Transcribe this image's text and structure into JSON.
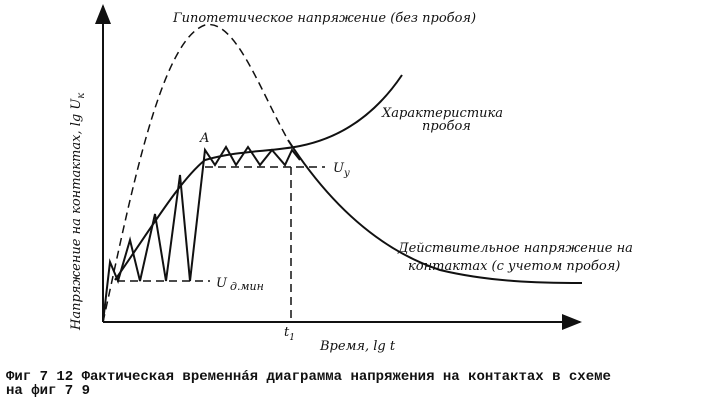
{
  "y_axis": {
    "label": "Напряжение на контактах, lg U",
    "subscript": "к"
  },
  "x_axis": {
    "label": "Время, lg t"
  },
  "curves": {
    "hypothetical": "Гипотетическое напряжение (без пробоя)",
    "breakdown": [
      "Характеристика",
      "пробоя"
    ],
    "actual": [
      "Действительное напряжение на",
      "контактах (с учетом пробоя)"
    ]
  },
  "points": {
    "a": "A",
    "u_y": {
      "symbol": "U",
      "subscript": "у"
    },
    "u_min": {
      "symbol": "U",
      "subscript": "д.мин"
    },
    "t1": {
      "symbol": "t",
      "subscript": "1"
    }
  },
  "caption": [
    "Фиг 7 12 Фактическая временнáя диаграмма напряжения на контактах в схеме",
    "на фиг 7 9"
  ]
}
